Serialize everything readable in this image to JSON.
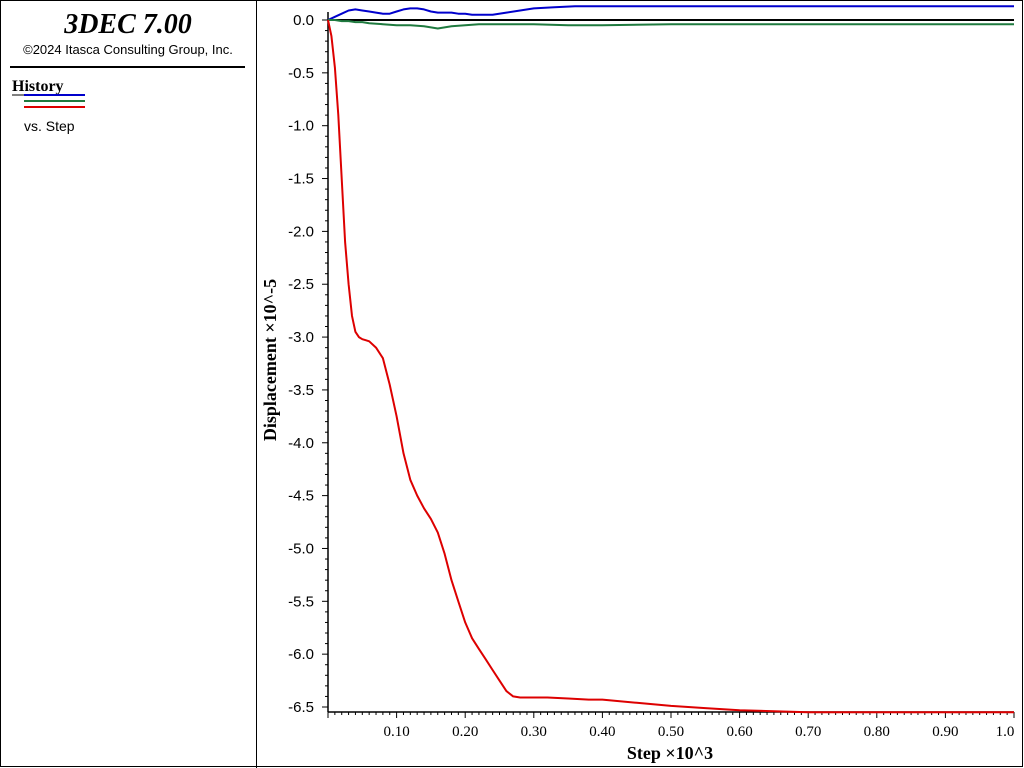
{
  "header": {
    "app_title": "3DEC 7.00",
    "copyright": "©2024 Itasca Consulting Group, Inc."
  },
  "legend": {
    "heading": "History",
    "subtitle": "vs. Step"
  },
  "colors": {
    "series_1": "#0000cc",
    "series_2": "#1f7a3f",
    "series_3": "#dd0000",
    "axes": "#000000",
    "background": "#ffffff"
  },
  "chart_data": {
    "type": "line",
    "xlabel": "Step ×10^3",
    "ylabel": "Displacement ×10^-5",
    "xlim": [
      0.0,
      1.0
    ],
    "ylim": [
      -6.5,
      0.0
    ],
    "x_ticks": [
      "0.10",
      "0.20",
      "0.30",
      "0.40",
      "0.50",
      "0.60",
      "0.70",
      "0.80",
      "0.90",
      "1.0"
    ],
    "y_ticks": [
      "0.0",
      "-0.5",
      "-1.0",
      "-1.5",
      "-2.0",
      "-2.5",
      "-3.0",
      "-3.5",
      "-4.0",
      "-4.5",
      "-5.0",
      "-5.5",
      "-6.0",
      "-6.5"
    ],
    "grid": false,
    "legend_position": "left panel",
    "zero_line": true,
    "series": [
      {
        "color": "#0000cc",
        "x": [
          0.0,
          0.01,
          0.02,
          0.03,
          0.04,
          0.05,
          0.06,
          0.07,
          0.08,
          0.09,
          0.1,
          0.11,
          0.12,
          0.13,
          0.14,
          0.15,
          0.16,
          0.17,
          0.18,
          0.19,
          0.2,
          0.21,
          0.22,
          0.23,
          0.24,
          0.26,
          0.28,
          0.3,
          0.33,
          0.36,
          0.4,
          0.5,
          0.6,
          0.7,
          0.8,
          0.9,
          1.0
        ],
        "y": [
          0.0,
          0.03,
          0.06,
          0.09,
          0.1,
          0.09,
          0.08,
          0.07,
          0.06,
          0.06,
          0.08,
          0.1,
          0.11,
          0.11,
          0.1,
          0.08,
          0.07,
          0.07,
          0.07,
          0.06,
          0.06,
          0.05,
          0.05,
          0.05,
          0.05,
          0.07,
          0.09,
          0.11,
          0.12,
          0.13,
          0.13,
          0.13,
          0.13,
          0.13,
          0.13,
          0.13,
          0.13
        ]
      },
      {
        "color": "#1f7a3f",
        "x": [
          0.0,
          0.01,
          0.02,
          0.03,
          0.04,
          0.05,
          0.06,
          0.08,
          0.1,
          0.12,
          0.14,
          0.15,
          0.16,
          0.17,
          0.18,
          0.2,
          0.22,
          0.24,
          0.26,
          0.3,
          0.35,
          0.4,
          0.5,
          0.6,
          0.7,
          0.8,
          0.9,
          1.0
        ],
        "y": [
          0.0,
          0.0,
          -0.01,
          -0.01,
          -0.02,
          -0.02,
          -0.03,
          -0.04,
          -0.05,
          -0.05,
          -0.06,
          -0.07,
          -0.08,
          -0.07,
          -0.06,
          -0.05,
          -0.04,
          -0.04,
          -0.04,
          -0.04,
          -0.05,
          -0.05,
          -0.04,
          -0.04,
          -0.04,
          -0.04,
          -0.04,
          -0.04
        ]
      },
      {
        "color": "#dd0000",
        "x": [
          0.0,
          0.005,
          0.01,
          0.015,
          0.02,
          0.025,
          0.03,
          0.035,
          0.04,
          0.045,
          0.05,
          0.055,
          0.06,
          0.07,
          0.08,
          0.09,
          0.1,
          0.11,
          0.12,
          0.13,
          0.14,
          0.15,
          0.16,
          0.17,
          0.18,
          0.19,
          0.2,
          0.21,
          0.22,
          0.23,
          0.24,
          0.25,
          0.26,
          0.27,
          0.28,
          0.29,
          0.3,
          0.32,
          0.35,
          0.38,
          0.4,
          0.45,
          0.5,
          0.55,
          0.6,
          0.65,
          0.7,
          0.8,
          0.9,
          1.0
        ],
        "y": [
          0.0,
          -0.15,
          -0.45,
          -0.9,
          -1.5,
          -2.1,
          -2.5,
          -2.8,
          -2.95,
          -3.0,
          -3.02,
          -3.03,
          -3.04,
          -3.1,
          -3.2,
          -3.45,
          -3.75,
          -4.1,
          -4.35,
          -4.5,
          -4.62,
          -4.72,
          -4.85,
          -5.05,
          -5.3,
          -5.5,
          -5.7,
          -5.85,
          -5.95,
          -6.05,
          -6.15,
          -6.25,
          -6.35,
          -6.4,
          -6.41,
          -6.41,
          -6.41,
          -6.41,
          -6.42,
          -6.43,
          -6.43,
          -6.46,
          -6.49,
          -6.51,
          -6.53,
          -6.54,
          -6.55,
          -6.55,
          -6.55,
          -6.55
        ]
      }
    ]
  }
}
